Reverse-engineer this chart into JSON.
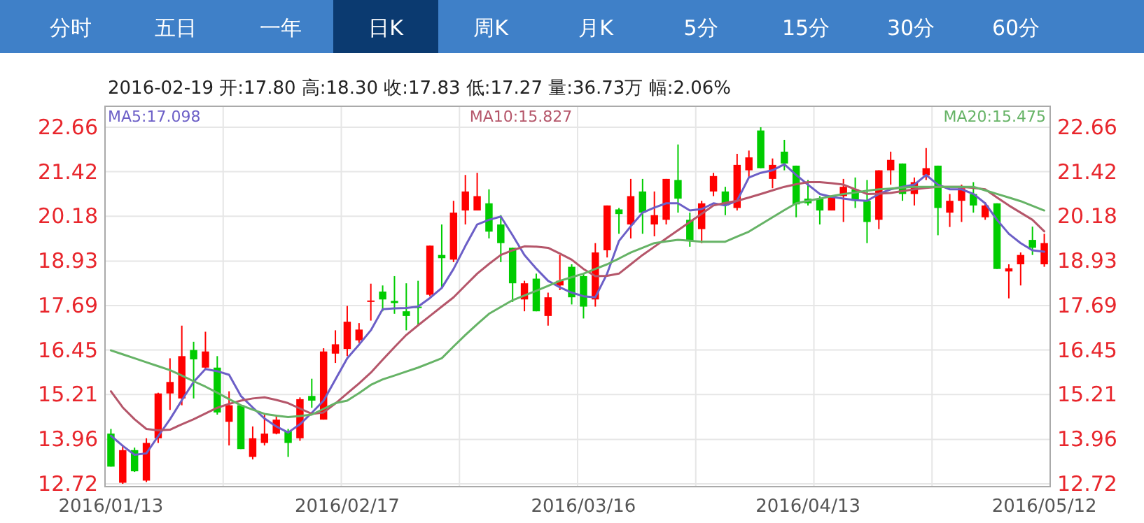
{
  "chart_data": {
    "type": "candlestick",
    "annotations": [
      "2016-02-19 开:17.80 高:18.30 收:17.83 低:17.27 量:36.73万 幅:2.06%",
      "分时",
      "五日",
      "一年",
      "日K",
      "周K",
      "月K",
      "5分",
      "15分",
      "30分",
      "60分"
    ],
    "categories": [
      "2016/01/13",
      null,
      null,
      null,
      null,
      null,
      null,
      null,
      null,
      null,
      null,
      null,
      null,
      null,
      null,
      null,
      null,
      null,
      null,
      null,
      "2016/02/17",
      null,
      null,
      null,
      null,
      null,
      null,
      null,
      null,
      null,
      null,
      null,
      null,
      null,
      null,
      null,
      null,
      null,
      null,
      null,
      "2016/03/16",
      null,
      null,
      null,
      null,
      null,
      null,
      null,
      null,
      null,
      null,
      null,
      null,
      null,
      null,
      null,
      null,
      null,
      null,
      "2016/04/13",
      null,
      null,
      null,
      null,
      null,
      null,
      null,
      null,
      null,
      null,
      null,
      null,
      null,
      null,
      null,
      null,
      null,
      null,
      null,
      "2016/05/12"
    ],
    "ohlc": [
      [
        14.12,
        14.25,
        13.2,
        13.2
      ],
      [
        12.75,
        13.8,
        12.72,
        13.66
      ],
      [
        13.66,
        13.73,
        13.05,
        13.07
      ],
      [
        12.81,
        13.99,
        12.77,
        13.86
      ],
      [
        13.99,
        15.26,
        13.86,
        15.24
      ],
      [
        15.24,
        16.22,
        14.78,
        15.56
      ],
      [
        15.1,
        17.13,
        14.91,
        16.28
      ],
      [
        16.45,
        16.68,
        15.1,
        16.19
      ],
      [
        15.96,
        16.96,
        15.89,
        16.41
      ],
      [
        15.96,
        16.28,
        14.65,
        14.71
      ],
      [
        14.45,
        15.3,
        13.79,
        14.91
      ],
      [
        14.91,
        14.91,
        13.69,
        13.69
      ],
      [
        13.47,
        14.32,
        13.4,
        13.99
      ],
      [
        13.86,
        14.65,
        13.79,
        14.12
      ],
      [
        14.12,
        14.65,
        14.1,
        14.51
      ],
      [
        14.19,
        14.25,
        13.47,
        13.86
      ],
      [
        13.99,
        15.13,
        13.92,
        15.08
      ],
      [
        15.17,
        15.65,
        14.84,
        15.04
      ],
      [
        14.51,
        16.5,
        14.51,
        16.41
      ],
      [
        16.35,
        17.0,
        16.09,
        16.61
      ],
      [
        16.48,
        17.68,
        16.28,
        17.24
      ],
      [
        16.72,
        17.2,
        16.65,
        17.02
      ],
      [
        17.8,
        18.3,
        17.27,
        17.83
      ],
      [
        18.08,
        18.25,
        17.53,
        17.86
      ],
      [
        17.82,
        18.51,
        17.46,
        17.76
      ],
      [
        17.53,
        18.31,
        17.0,
        17.4
      ],
      [
        17.66,
        18.38,
        17.13,
        17.63
      ],
      [
        17.99,
        19.36,
        17.95,
        19.36
      ],
      [
        19.1,
        19.95,
        18.18,
        19.01
      ],
      [
        18.97,
        20.61,
        18.9,
        20.28
      ],
      [
        20.34,
        21.33,
        19.95,
        20.87
      ],
      [
        20.34,
        21.39,
        20.34,
        20.74
      ],
      [
        20.54,
        20.93,
        19.56,
        19.75
      ],
      [
        19.95,
        20.21,
        18.9,
        19.43
      ],
      [
        19.3,
        19.3,
        17.79,
        18.31
      ],
      [
        17.86,
        18.38,
        17.53,
        18.31
      ],
      [
        18.44,
        18.58,
        17.53,
        17.53
      ],
      [
        17.4,
        18.05,
        17.13,
        17.92
      ],
      [
        18.25,
        19.1,
        18.12,
        18.38
      ],
      [
        18.77,
        18.84,
        17.72,
        17.92
      ],
      [
        18.51,
        18.58,
        17.33,
        17.66
      ],
      [
        17.86,
        19.43,
        17.66,
        19.17
      ],
      [
        19.23,
        20.48,
        19.03,
        20.48
      ],
      [
        20.37,
        20.41,
        19.69,
        20.24
      ],
      [
        19.95,
        21.22,
        19.56,
        20.74
      ],
      [
        20.87,
        21.22,
        19.69,
        20.28
      ],
      [
        19.95,
        20.87,
        19.62,
        20.21
      ],
      [
        20.08,
        21.22,
        19.95,
        21.22
      ],
      [
        21.19,
        22.18,
        20.28,
        20.67
      ],
      [
        20.08,
        20.28,
        19.33,
        19.49
      ],
      [
        19.82,
        20.61,
        19.43,
        20.54
      ],
      [
        20.87,
        21.39,
        20.74,
        21.3
      ],
      [
        20.87,
        21.0,
        20.21,
        20.48
      ],
      [
        20.41,
        21.92,
        20.34,
        21.61
      ],
      [
        21.46,
        22.01,
        21.26,
        21.82
      ],
      [
        22.57,
        22.66,
        21.52,
        21.52
      ],
      [
        21.22,
        21.79,
        20.96,
        21.61
      ],
      [
        21.98,
        22.31,
        21.46,
        21.65
      ],
      [
        21.59,
        21.59,
        20.15,
        20.51
      ],
      [
        20.67,
        21.19,
        20.48,
        20.54
      ],
      [
        20.67,
        20.74,
        19.95,
        20.34
      ],
      [
        20.34,
        20.74,
        20.34,
        20.74
      ],
      [
        20.74,
        21.22,
        20.02,
        21.0
      ],
      [
        20.93,
        21.26,
        20.41,
        20.61
      ],
      [
        20.61,
        21.19,
        19.43,
        20.02
      ],
      [
        20.08,
        21.46,
        19.82,
        21.46
      ],
      [
        21.46,
        21.98,
        21.06,
        21.75
      ],
      [
        21.65,
        21.65,
        20.61,
        20.8
      ],
      [
        20.8,
        21.26,
        20.48,
        21.13
      ],
      [
        21.32,
        22.08,
        21.19,
        21.52
      ],
      [
        21.59,
        21.59,
        19.65,
        20.41
      ],
      [
        20.28,
        20.8,
        19.88,
        20.61
      ],
      [
        20.61,
        21.06,
        20.02,
        20.96
      ],
      [
        20.8,
        21.13,
        20.28,
        20.48
      ],
      [
        20.15,
        20.57,
        20.08,
        20.48
      ],
      [
        20.54,
        20.54,
        18.71,
        18.71
      ],
      [
        18.64,
        18.84,
        17.89,
        18.73
      ],
      [
        18.84,
        19.17,
        18.25,
        19.1
      ],
      [
        19.52,
        19.89,
        19.1,
        19.3
      ],
      [
        18.84,
        19.69,
        18.77,
        19.43
      ]
    ],
    "colors": [
      "#00cc00",
      "#ff0000",
      "#00cc00",
      "#ff0000",
      "#ff0000",
      "#ff0000",
      "#ff0000",
      "#00cc00",
      "#ff0000",
      "#00cc00",
      "#ff0000",
      "#00cc00",
      "#ff0000",
      "#ff0000",
      "#ff0000",
      "#00cc00",
      "#ff0000",
      "#00cc00",
      "#ff0000",
      "#ff0000",
      "#ff0000",
      "#ff0000",
      "#ff0000",
      "#00cc00",
      "#00cc00",
      "#00cc00",
      "#00cc00",
      "#ff0000",
      "#00cc00",
      "#ff0000",
      "#ff0000",
      "#ff0000",
      "#00cc00",
      "#00cc00",
      "#00cc00",
      "#ff0000",
      "#00cc00",
      "#ff0000",
      "#ff0000",
      "#00cc00",
      "#00cc00",
      "#ff0000",
      "#ff0000",
      "#00cc00",
      "#ff0000",
      "#00cc00",
      "#ff0000",
      "#ff0000",
      "#00cc00",
      "#00cc00",
      "#ff0000",
      "#ff0000",
      "#00cc00",
      "#ff0000",
      "#ff0000",
      "#00cc00",
      "#ff0000",
      "#00cc00",
      "#00cc00",
      "#00cc00",
      "#00cc00",
      "#ff0000",
      "#ff0000",
      "#00cc00",
      "#00cc00",
      "#ff0000",
      "#ff0000",
      "#00cc00",
      "#ff0000",
      "#ff0000",
      "#00cc00",
      "#ff0000",
      "#ff0000",
      "#00cc00",
      "#ff0000",
      "#00cc00",
      "#ff0000",
      "#ff0000",
      "#00cc00",
      "#ff0000"
    ],
    "series": [
      {
        "type": "line",
        "name": "MA5:17.098",
        "color": "#6c5fc7",
        "values": [
          14.06,
          13.78,
          13.53,
          13.57,
          14.05,
          14.52,
          15.05,
          15.56,
          15.92,
          15.86,
          15.76,
          15.17,
          14.85,
          14.54,
          14.32,
          14.15,
          14.38,
          14.7,
          15.04,
          15.63,
          16.22,
          16.6,
          17.0,
          17.59,
          17.61,
          17.62,
          17.66,
          17.9,
          18.18,
          18.71,
          19.35,
          19.95,
          20.08,
          20.17,
          19.65,
          19.1,
          18.72,
          18.38,
          18.2,
          18.05,
          17.95,
          17.92,
          18.58,
          19.49,
          19.9,
          20.28,
          20.42,
          20.54,
          20.54,
          20.34,
          20.38,
          20.54,
          20.48,
          20.61,
          21.26,
          21.39,
          21.46,
          21.63,
          21.33,
          21.06,
          20.8,
          20.72,
          20.67,
          20.63,
          20.61,
          20.8,
          20.93,
          21.0,
          21.06,
          21.33,
          21.06,
          20.93,
          20.93,
          20.8,
          20.54,
          20.08,
          19.69,
          19.43,
          19.23,
          19.19
        ]
      },
      {
        "type": "line",
        "name": "MA10:15.827",
        "color": "#b5566a",
        "values": [
          15.3,
          14.85,
          14.52,
          14.25,
          14.21,
          14.23,
          14.38,
          14.52,
          14.68,
          14.84,
          14.95,
          15.04,
          15.1,
          15.13,
          15.06,
          14.97,
          14.82,
          14.67,
          14.71,
          14.96,
          15.24,
          15.52,
          15.82,
          16.18,
          16.53,
          16.87,
          17.14,
          17.4,
          17.66,
          17.92,
          18.25,
          18.58,
          18.85,
          19.1,
          19.23,
          19.34,
          19.33,
          19.3,
          19.14,
          18.97,
          18.71,
          18.51,
          18.52,
          18.58,
          18.84,
          19.1,
          19.33,
          19.56,
          19.79,
          20.02,
          20.25,
          20.48,
          20.55,
          20.61,
          20.7,
          20.8,
          20.9,
          21.0,
          21.07,
          21.13,
          21.13,
          21.1,
          21.06,
          20.93,
          20.8,
          20.81,
          20.83,
          20.88,
          20.93,
          20.97,
          21.0,
          21.0,
          21.0,
          20.97,
          20.93,
          20.7,
          20.48,
          20.28,
          20.08,
          19.76
        ]
      },
      {
        "type": "line",
        "name": "MA20:15.475",
        "color": "#66b366",
        "values": [
          16.44,
          16.33,
          16.22,
          16.11,
          16.0,
          15.89,
          15.74,
          15.58,
          15.43,
          15.26,
          15.08,
          14.91,
          14.79,
          14.67,
          14.62,
          14.58,
          14.61,
          14.65,
          14.81,
          14.97,
          15.04,
          15.25,
          15.48,
          15.63,
          15.74,
          15.85,
          15.96,
          16.09,
          16.22,
          16.55,
          16.87,
          17.17,
          17.46,
          17.65,
          17.84,
          17.97,
          18.1,
          18.24,
          18.38,
          18.48,
          18.58,
          18.71,
          18.84,
          19.0,
          19.17,
          19.3,
          19.43,
          19.48,
          19.52,
          19.5,
          19.47,
          19.47,
          19.47,
          19.61,
          19.75,
          19.95,
          20.15,
          20.35,
          20.54,
          20.61,
          20.67,
          20.74,
          20.8,
          20.84,
          20.89,
          20.93,
          20.95,
          20.98,
          21.0,
          21.0,
          21.0,
          21.0,
          21.0,
          21.0,
          20.9,
          20.8,
          20.7,
          20.6,
          20.47,
          20.34
        ]
      }
    ],
    "ylim": [
      12.72,
      22.66
    ],
    "yticks": [
      12.72,
      13.96,
      15.21,
      16.45,
      17.69,
      18.93,
      20.18,
      21.42,
      22.66
    ],
    "y2lim": [
      12.72,
      22.66
    ],
    "y2ticks": [
      12.72,
      13.96,
      15.21,
      16.45,
      17.69,
      18.93,
      20.18,
      21.42,
      22.66
    ],
    "grid": true,
    "legend": "top"
  }
}
